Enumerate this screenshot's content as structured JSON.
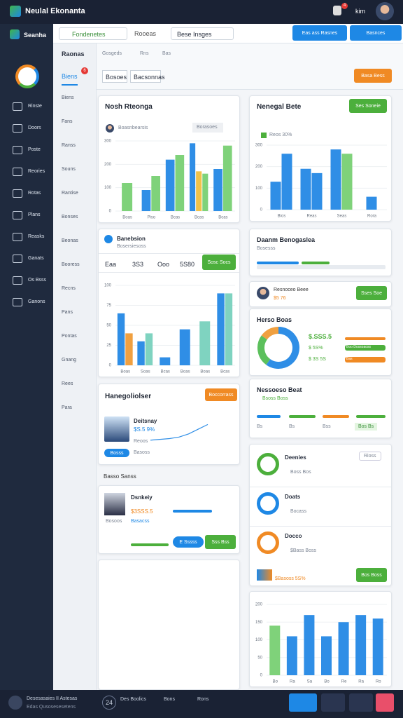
{
  "app": {
    "title": "Neulal Ekonanta",
    "user": "kim",
    "badge": "4"
  },
  "sidebar": {
    "brand": "Seanha",
    "items": [
      "Rinste",
      "Doors",
      "Poste",
      "Reories",
      "Rotas",
      "Plans",
      "Reasks",
      "Ganats",
      "Os Bsss",
      "Ganons"
    ]
  },
  "subnav": {
    "items": [
      "Biens",
      "Fans",
      "Ranss",
      "Souns",
      "Rantise",
      "Bonses",
      "Beonas",
      "Booress",
      "Recns",
      "Pans",
      "Pontas",
      "Gnang",
      "Rees",
      "Para"
    ]
  },
  "toolbar": {
    "search": "Fondenetes",
    "menu": "Rooeas",
    "search2": "Bese Insges",
    "button1": "Eas ass Rasnes",
    "button2": "Basnces"
  },
  "tabs": {
    "items": [
      "Raonas",
      "Gosgeds",
      "Rns",
      "Bas"
    ],
    "active": "Biens",
    "badge": "6",
    "filters": [
      "Bosoes",
      "Bacsonnas"
    ],
    "action": "Basa Bess"
  },
  "cards": {
    "c1": {
      "title": "Nosh Rteonga",
      "sub": "Boasnbearsis",
      "chip": "Borasoes"
    },
    "c2": {
      "title": "Banebsion",
      "sub": "Bosersiesoss",
      "stats": [
        "Eaa",
        "3S3",
        "Ooo",
        "5S80"
      ],
      "button": "Sosc Socs"
    },
    "c3": {
      "title": "Hanegoliolser",
      "button": "Boccorrass",
      "name": "Deitsnay",
      "value": "$S.5 9%",
      "note": "Reoos",
      "tag": "Bosss",
      "extra": "Basoss"
    },
    "section": "Basso Sanss",
    "c4": {
      "name": "Dsnkeiy",
      "value": "$3SSS.5",
      "sub": "Bosoos",
      "link": "Basacss",
      "button1": "E Sssss",
      "button2": "Sss Bss"
    },
    "r1": {
      "title": "Nenegal Bete",
      "button": "Ses Soneie",
      "legend": "Reos 30%"
    },
    "r2": {
      "title": "Daanm Benogaslea",
      "sub": "Bosesss"
    },
    "r3": {
      "name": "Resnoceo Beee",
      "value": "$5 76",
      "button": "Sses Soe"
    },
    "r4": {
      "title": "Herso Boas",
      "legend": [
        "$.SSS.5",
        "$ 5S%",
        "$ 3S 5S"
      ],
      "chips": [
        "Boo Dossoaoss",
        "Bas"
      ]
    },
    "r5": {
      "title": "Nessoeso Beat",
      "sub": "Bsoss Boss",
      "labels": [
        "Bs",
        "Bs",
        "Bss",
        "Bos Bs"
      ]
    },
    "r6": {
      "chip": "Rioss",
      "items": [
        {
          "title": "Deenies",
          "meta": "Boss Bos"
        },
        {
          "title": "Doats",
          "meta": "Bocass"
        },
        {
          "title": "Docco",
          "meta": "$Bass Boss"
        }
      ],
      "footer": "$Basoss 5S%",
      "button": "Bos Boss"
    }
  },
  "bottom": {
    "title": "Desesasaies II Astesas",
    "sub": "Edas Qusosesesetens",
    "num": "24",
    "item1": "Des Boolics",
    "item2": "Bons",
    "item3": "Rons"
  },
  "chart_data": [
    {
      "type": "bar",
      "categories": [
        "Boas",
        "Piso",
        "Bcas",
        "Bcas",
        "Bcas"
      ],
      "series": [
        {
          "color": "#2f8ee6",
          "values": [
            null,
            90,
            220,
            290,
            180
          ]
        },
        {
          "color": "#f0c24a",
          "values": [
            null,
            null,
            null,
            170,
            null
          ]
        },
        {
          "color": "#7fd27a",
          "values": [
            120,
            150,
            240,
            160,
            280
          ]
        }
      ],
      "ylim": [
        0,
        300
      ],
      "yticks": [
        0,
        100,
        200,
        300
      ],
      "grid": true
    },
    {
      "type": "bar",
      "categories": [
        "Bios",
        "Reas",
        "Seas",
        "Rora"
      ],
      "series": [
        {
          "color": "#2f8ee6",
          "values": [
            130,
            190,
            280,
            60
          ]
        },
        {
          "color": "#2f8ee6",
          "values": [
            260,
            170,
            null,
            null
          ]
        },
        {
          "color": "#7fd27a",
          "values": [
            null,
            null,
            260,
            null
          ]
        }
      ],
      "ylim": [
        0,
        300
      ],
      "yticks": [
        0,
        100,
        200,
        300
      ],
      "grid": true
    },
    {
      "type": "bar",
      "categories": [
        "Boas",
        "Soas",
        "Bcas",
        "Boas",
        "Boas",
        "Bcas"
      ],
      "series": [
        {
          "color": "#2f8ee6",
          "values": [
            65,
            30,
            10,
            45,
            null,
            90
          ]
        },
        {
          "color": "#f0a040",
          "values": [
            40,
            null,
            null,
            null,
            null,
            null
          ]
        },
        {
          "color": "#7fd3c0",
          "values": [
            null,
            40,
            null,
            null,
            55,
            90
          ]
        }
      ],
      "ylim": [
        0,
        100
      ],
      "yticks": [
        0,
        25,
        50,
        75,
        100
      ],
      "grid": true
    },
    {
      "type": "pie",
      "values": [
        60,
        25,
        15
      ],
      "colors": [
        "#2f8ee6",
        "#5cc05c",
        "#f0a040"
      ]
    },
    {
      "type": "line",
      "values": [
        2,
        3,
        4,
        6,
        10,
        16,
        22
      ],
      "color": "#2f8ee6",
      "ylim": [
        0,
        25
      ]
    },
    {
      "type": "bar",
      "categories": [
        "Bo",
        "Ra",
        "Sa",
        "Bo",
        "Re",
        "Ra",
        "Ro"
      ],
      "series": [
        {
          "color": "#2f8ee6",
          "values": [
            null,
            110,
            170,
            110,
            150,
            170,
            160
          ]
        },
        {
          "color": "#7fd27a",
          "values": [
            140,
            null,
            null,
            null,
            null,
            null,
            null
          ]
        }
      ],
      "ylim": [
        0,
        200
      ],
      "yticks": [
        0,
        50,
        100,
        150,
        200
      ],
      "grid": true
    }
  ]
}
